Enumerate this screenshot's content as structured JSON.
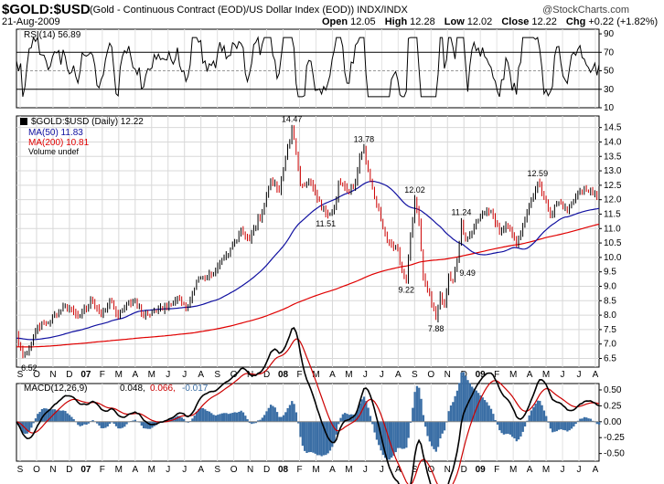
{
  "header": {
    "symbol": "$GOLD:$USD",
    "description": "(Gold - Continuous Contract (EOD)/US Dollar Index (EOD))  INDX/INDX",
    "date": "21-Aug-2009",
    "open_label": "Open",
    "open": "12.05",
    "high_label": "High",
    "high": "12.28",
    "low_label": "Low",
    "low": "12.02",
    "close_label": "Close",
    "close": "12.22",
    "chg_label": "Chg",
    "chg": "+0.22 (+1.82%)",
    "logo": "@StockCharts.com"
  },
  "colors": {
    "ma50": "#1010a0",
    "ma200": "#e00000",
    "up": "#000000",
    "down": "#cc0000",
    "macd_hist": "#3a6ea5",
    "signal": "#cc0000"
  },
  "chart_data": [
    {
      "type": "line",
      "title": "RSI(14) 56.89",
      "series": [
        {
          "name": "RSI(14)",
          "last": 56.89
        }
      ],
      "yticks": [
        10,
        30,
        50,
        70,
        90
      ],
      "reference_lines": [
        30,
        50,
        70
      ],
      "ylim": [
        10,
        95
      ]
    },
    {
      "type": "line",
      "title": "$GOLD:$USD (Daily) 12.22",
      "legend": [
        "$GOLD:$USD (Daily) 12.22",
        "MA(50) 11.83",
        "MA(200) 10.81",
        "Volume undef"
      ],
      "yticks": [
        6.5,
        7.0,
        7.5,
        8.0,
        8.5,
        9.0,
        9.5,
        10.0,
        10.5,
        11.0,
        11.5,
        12.0,
        12.5,
        13.0,
        13.5,
        14.0,
        14.5
      ],
      "ylim": [
        6.2,
        14.9
      ],
      "months": [
        "S",
        "O",
        "N",
        "D",
        "07",
        "F",
        "M",
        "A",
        "M",
        "J",
        "J",
        "A",
        "S",
        "O",
        "N",
        "D",
        "08",
        "F",
        "M",
        "A",
        "M",
        "J",
        "J",
        "A",
        "S",
        "O",
        "N",
        "D",
        "09",
        "F",
        "M",
        "A",
        "M",
        "J",
        "J",
        "A"
      ],
      "anchors": [
        [
          0,
          7.4
        ],
        [
          1,
          7.0
        ],
        [
          3,
          6.6
        ],
        [
          6,
          6.9
        ],
        [
          10,
          7.6
        ],
        [
          16,
          7.8
        ],
        [
          22,
          8.3
        ],
        [
          26,
          8.2
        ],
        [
          30,
          8.0
        ],
        [
          36,
          8.5
        ],
        [
          40,
          8.0
        ],
        [
          44,
          8.5
        ],
        [
          48,
          8.0
        ],
        [
          52,
          8.4
        ],
        [
          56,
          8.5
        ],
        [
          60,
          7.95
        ],
        [
          64,
          8.1
        ],
        [
          70,
          8.3
        ],
        [
          76,
          8.6
        ],
        [
          80,
          8.2
        ],
        [
          86,
          9.3
        ],
        [
          92,
          9.4
        ],
        [
          100,
          10.1
        ],
        [
          106,
          11.0
        ],
        [
          110,
          10.6
        ],
        [
          116,
          11.6
        ],
        [
          120,
          12.7
        ],
        [
          124,
          12.3
        ],
        [
          128,
          13.8
        ],
        [
          130,
          14.47
        ],
        [
          132,
          13.6
        ],
        [
          134,
          12.5
        ],
        [
          138,
          12.7
        ],
        [
          142,
          12.0
        ],
        [
          146,
          11.51
        ],
        [
          150,
          11.7
        ],
        [
          152,
          12.6
        ],
        [
          156,
          12.3
        ],
        [
          160,
          12.6
        ],
        [
          162,
          13.5
        ],
        [
          164,
          13.78
        ],
        [
          166,
          13.0
        ],
        [
          168,
          12.4
        ],
        [
          172,
          11.3
        ],
        [
          176,
          10.5
        ],
        [
          180,
          10.3
        ],
        [
          182,
          9.5
        ],
        [
          184,
          9.22
        ],
        [
          186,
          10.8
        ],
        [
          188,
          12.02
        ],
        [
          190,
          11.2
        ],
        [
          192,
          9.3
        ],
        [
          196,
          8.4
        ],
        [
          198,
          7.88
        ],
        [
          200,
          8.7
        ],
        [
          202,
          8.3
        ],
        [
          204,
          9.4
        ],
        [
          206,
          9.2
        ],
        [
          208,
          9.9
        ],
        [
          210,
          11.24
        ],
        [
          212,
          10.6
        ],
        [
          216,
          11.1
        ],
        [
          220,
          11.5
        ],
        [
          224,
          11.6
        ],
        [
          228,
          10.9
        ],
        [
          232,
          11.1
        ],
        [
          236,
          10.4
        ],
        [
          240,
          11.3
        ],
        [
          244,
          12.1
        ],
        [
          246,
          12.59
        ],
        [
          248,
          12.2
        ],
        [
          252,
          11.5
        ],
        [
          256,
          11.9
        ],
        [
          260,
          11.6
        ],
        [
          264,
          12.1
        ],
        [
          268,
          12.4
        ],
        [
          272,
          12.2
        ],
        [
          275,
          12.22
        ]
      ],
      "annotations": [
        {
          "label": "6.52",
          "value": 6.52
        },
        {
          "label": "14.47",
          "value": 14.47
        },
        {
          "label": "11.51",
          "value": 11.51
        },
        {
          "label": "13.78",
          "value": 13.78
        },
        {
          "label": "12.02",
          "value": 12.02
        },
        {
          "label": "9.22",
          "value": 9.22
        },
        {
          "label": "7.88",
          "value": 7.88
        },
        {
          "label": "11.24",
          "value": 11.24
        },
        {
          "label": "9.49",
          "value": 9.49
        },
        {
          "label": "12.59",
          "value": 12.59
        }
      ],
      "series": [
        {
          "name": "MA(50)",
          "last": 11.83
        },
        {
          "name": "MA(200)",
          "last": 10.81
        }
      ]
    },
    {
      "type": "line",
      "title": "MACD(12,26,9) 0.048, 0.066, -0.017",
      "legend_values": {
        "macd": "0.048",
        "signal": "0.066",
        "histogram": "-0.017"
      },
      "legend_name": "MACD(12,26,9)",
      "yticks": [
        -0.5,
        -0.25,
        0.0,
        0.25,
        0.5
      ],
      "ylim": [
        -0.62,
        0.6
      ]
    }
  ],
  "panel_labels": {
    "rsi": "RSI(14) 56.89",
    "price": "$GOLD:$USD (Daily) 12.22",
    "ma50": "MA(50) 11.83",
    "ma200": "MA(200) 10.81",
    "volume": "Volume undef",
    "macd_name": "MACD(12,26,9)",
    "macd_v1": "0.048,",
    "macd_v2": "0.066,",
    "macd_v3": "-0.017"
  }
}
